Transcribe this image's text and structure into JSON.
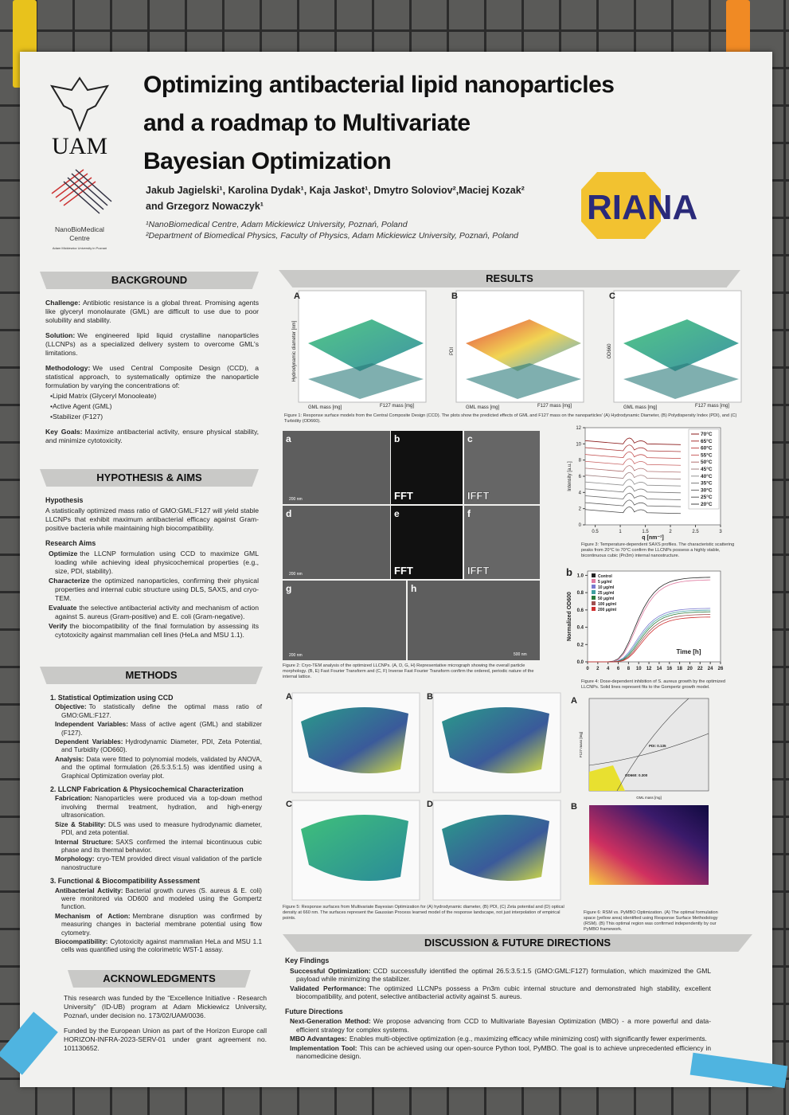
{
  "header": {
    "title": [
      "Optimizing antibacterial lipid nanoparticles",
      "and a roadmap to Multivariate",
      "Bayesian Optimization"
    ],
    "authors": [
      "Jakub Jagielski¹, Karolina Dydak¹, Kaja Jaskot¹, Dmytro Soloviov²,Maciej Kozak²",
      "and Grzegorz Nowaczyk¹"
    ],
    "affiliations": [
      "¹NanoBiomedical Centre, Adam Mickiewicz University, Poznań, Poland",
      "²Department of Biomedical Physics, Faculty of Physics, Adam Mickiewicz University, Poznań, Poland"
    ],
    "logo_uam": "UAM",
    "logo_nbm": [
      "NanoBioMedical",
      "Centre",
      "Adam Mickiewicz University in Poznań"
    ],
    "logo_riana": "RIANA"
  },
  "background": {
    "heading": "BACKGROUND",
    "items": [
      {
        "label": "Challenge:",
        "text": "Antibiotic resistance is a global threat. Promising agents like glyceryl monolaurate (GML) are difficult to use due to poor solubility and stability."
      },
      {
        "label": "Solution:",
        "text": "We engineered lipid liquid crystalline nanoparticles (LLCNPs) as a specialized delivery system to overcome GML's limitations."
      },
      {
        "label": "Methodology:",
        "text": "We used Central Composite Design (CCD), a statistical approach, to systematically optimize the nanoparticle formulation by varying the concentrations of:"
      }
    ],
    "bullets": [
      "•Lipid Matrix (Glyceryl Monooleate)",
      "•Active Agent (GML)",
      "•Stabilizer (F127)"
    ],
    "goals": {
      "label": "Key Goals:",
      "text": "Maximize antibacterial activity, ensure physical stability, and minimize cytotoxicity."
    }
  },
  "hypothesis": {
    "heading": "HYPOTHESIS & AIMS",
    "subtitle": "Hypothesis",
    "text": "A statistically optimized mass ratio of GMO:GML:F127 will yield stable LLCNPs that exhibit maximum antibacterial efficacy against Gram-positive bacteria while maintaining high biocompatibility.",
    "aims_title": "Research Aims",
    "aims": [
      {
        "label": "Optimize",
        "text": "the LLCNP formulation using CCD to maximize GML loading while achieving ideal physicochemical properties (e.g., size, PDI, stability)."
      },
      {
        "label": "Characterize",
        "text": "the optimized nanoparticles, confirming their physical properties and internal cubic structure using DLS, SAXS, and cryo-TEM."
      },
      {
        "label": "Evaluate",
        "text": "the selective antibacterial activity and mechanism of action against S. aureus (Gram-positive) and E. coli (Gram-negative)."
      },
      {
        "label": "Verify",
        "text": "the biocompatibility of the final formulation by assessing its cytotoxicity against mammalian cell lines (HeLa and MSU 1.1)."
      }
    ]
  },
  "methods": {
    "heading": "METHODS",
    "sections": [
      {
        "title": "1. Statistical Optimization using CCD",
        "items": [
          {
            "label": "Objective:",
            "text": "To statistically define the optimal mass ratio of GMO:GML:F127."
          },
          {
            "label": "Independent Variables:",
            "text": "Mass of active agent (GML) and stabilizer (F127)."
          },
          {
            "label": "Dependent Variables:",
            "text": "Hydrodynamic Diameter, PDI, Zeta Potential, and Turbidity (OD660)."
          },
          {
            "label": "Analysis:",
            "text": "Data were fitted to polynomial models, validated by ANOVA, and the optimal formulation (26.5:3.5:1.5) was identified using a Graphical Optimization overlay plot."
          }
        ]
      },
      {
        "title": "2. LLCNP Fabrication & Physicochemical Characterization",
        "items": [
          {
            "label": "Fabrication:",
            "text": "Nanoparticles were produced via a top-down method involving thermal treatment, hydration, and high-energy ultrasonication."
          },
          {
            "label": "Size & Stability:",
            "text": "DLS was used to measure hydrodynamic diameter, PDI, and zeta potential."
          },
          {
            "label": "Internal Structure:",
            "text": "SAXS confirmed the internal bicontinuous cubic phase and its thermal behavior."
          },
          {
            "label": "Morphology:",
            "text": "cryo-TEM provided direct visual validation of the particle nanostructure"
          }
        ]
      },
      {
        "title": "3. Functional & Biocompatibility Assessment",
        "items": [
          {
            "label": "Antibacterial Activity:",
            "text": "Bacterial growth curves (S. aureus & E. coli) were monitored via OD600 and modeled using the Gompertz function."
          },
          {
            "label": "Mechanism of Action:",
            "text": "Membrane disruption was confirmed by measuring changes in bacterial membrane potential using flow cytometry."
          },
          {
            "label": "Biocompatibility:",
            "text": "Cytotoxicity against mammalian HeLa and MSU 1.1 cells was quantified using the colorimetric WST-1 assay."
          }
        ]
      }
    ]
  },
  "acknowledgments": {
    "heading": "ACKNOWLEDGMENTS",
    "paragraphs": [
      "This research was funded by the “Excellence Initiative - Research University” (ID-UB) program at Adam Mickiewicz University, Poznań, under decision no. 173/02/UAM/0036.",
      "Funded by the European Union as part of the Horizon Europe call HORIZON-INFRA-2023-SERV-01 under grant agreement no. 101130652."
    ]
  },
  "results": {
    "heading": "RESULTS",
    "fig1": {
      "panels": [
        "A",
        "B",
        "C"
      ],
      "axis_labels": [
        "Hydrodynamic diameter [nm]",
        "PDI",
        "OD660"
      ],
      "x_label": "GML mass [mg]",
      "y_label": "F127 mass [mg]",
      "caption": "Figure 1: Response surface models from the Central Composite Design (CCD). The plots show the predicted effects of GML and F127 mass on the nanoparticles' (A) Hydrodynamic Diameter, (B) Polydispersity Index (PDI), and (C) Turbidity (OD660)."
    },
    "fig2": {
      "panels": [
        "a",
        "b",
        "c",
        "d",
        "e",
        "f",
        "g",
        "h"
      ],
      "fft": "FFT",
      "ifft": "IFFT",
      "scale_200": "200 nm",
      "scale_500": "500 nm",
      "caption": "Figure 2: Cryo-TEM analysis of the optimized LLCNPs. (A, D, G, H) Representative micrograph showing the overall particle morphology. (B, E) Fast Fourier Transform and (C, F) Inverse Fast Fourier Transform confirm the ordered, periodic nature of the internal lattice."
    },
    "fig3": {
      "y_label": "Intensity [a.u.]",
      "x_label": "q [nm⁻¹]",
      "yticks": [
        0,
        2,
        4,
        6,
        8,
        10,
        12
      ],
      "xticks": [
        0.5,
        1,
        1.5,
        2,
        2.5,
        3
      ],
      "ylim": [
        0,
        12
      ],
      "xlim": [
        0.3,
        3
      ],
      "legend": [
        "70°C",
        "65°C",
        "60°C",
        "55°C",
        "50°C",
        "45°C",
        "40°C",
        "35°C",
        "30°C",
        "25°C",
        "20°C"
      ],
      "colors": [
        "#8b1a1a",
        "#a83232",
        "#c04848",
        "#c86060",
        "#b07070",
        "#a08080",
        "#909090",
        "#7a7a7a",
        "#686868",
        "#5a5a5a",
        "#444444"
      ],
      "caption": "Figure 3: Temperature-dependent SAXS profiles. The characteristic scattering peaks from 20°C to 70°C confirm the LLCNPs possess a highly stable, bicontinuous cubic (Pn3m) internal nanostructure."
    },
    "fig4": {
      "panel": "b",
      "y_label": "Normalized OD600",
      "x_label": "Time [h]",
      "yticks": [
        {
          "value": 0,
          "label": "0.0"
        },
        0.2,
        0.4,
        0.6,
        0.8,
        {
          "value": 1,
          "label": "1.0"
        }
      ],
      "xticks": [
        0,
        2,
        4,
        6,
        8,
        10,
        12,
        14,
        16,
        18,
        20,
        22,
        24,
        26
      ],
      "ylim": [
        0,
        1.05
      ],
      "xlim": [
        0,
        26
      ],
      "legend": [
        "Control",
        "5 μg/ml",
        "10 μg/ml",
        "25 μg/ml",
        "50 μg/ml",
        "100 μg/ml",
        "200 μg/ml"
      ],
      "colors": [
        "#222222",
        "#e07aa0",
        "#7a7ad0",
        "#40a0a0",
        "#2a7a3a",
        "#a05050",
        "#d03030"
      ],
      "caption": "Figure 4: Dose-dependent inhibition of S. aureus growth by the optimized LLCNPs. Solid lines represent fits to the Gompertz growth model."
    },
    "fig5": {
      "panels": [
        "A",
        "B",
        "C",
        "D"
      ],
      "caption": "Figure 5: Response surfaces from Multivariate Bayesian Optimization for (A) hydrodynamic diameter, (B) PDI, (C) Zeta potential and (D) optical density at 660 nm. The surfaces represent the Gaussian Process learned model of the response landscape, not just interpolation of empirical points."
    },
    "fig6": {
      "panels": [
        "A",
        "B"
      ],
      "pdi_label": "PDI: 0.135",
      "od_label": "OD660: 0.300",
      "y_label": "F127 mass [mg]",
      "x_label": "GML mass [mg]",
      "caption": "Figure 6: RSM vs. PyMBO Optimization. (A) The optimal formulation space (yellow area) identified using Response Surface Methodology (RSM). (B) This optimal region was confirmed independently by our PyMBO framework."
    }
  },
  "discussion": {
    "heading": "DISCUSSION & FUTURE DIRECTIONS",
    "key_title": "Key Findings",
    "key": [
      {
        "label": "Successful Optimization:",
        "text": "CCD successfully identified the optimal 26.5:3.5:1.5 (GMO:GML:F127) formulation, which maximized the GML payload while minimizing the stabilizer."
      },
      {
        "label": "Validated Performance:",
        "text": "The optimized LLCNPs possess a Pn3m cubic internal structure and demonstrated high stability, excellent biocompatibility, and potent, selective antibacterial activity against S. aureus."
      }
    ],
    "future_title": "Future Directions",
    "future": [
      {
        "label": "Next-Generation Method:",
        "text": "We propose advancing from CCD to Multivariate Bayesian Optimization (MBO) - a more powerful and data-efficient strategy for complex systems."
      },
      {
        "label": "MBO Advantages:",
        "text": "Enables multi-objective optimization (e.g., maximizing efficacy while minimizing cost) with significantly fewer experiments."
      },
      {
        "label": "Implementation Tool:",
        "text": "This can be achieved using our open-source Python tool, PyMBO. The goal is to achieve unprecedented efficiency in nanomedicine design."
      }
    ]
  }
}
